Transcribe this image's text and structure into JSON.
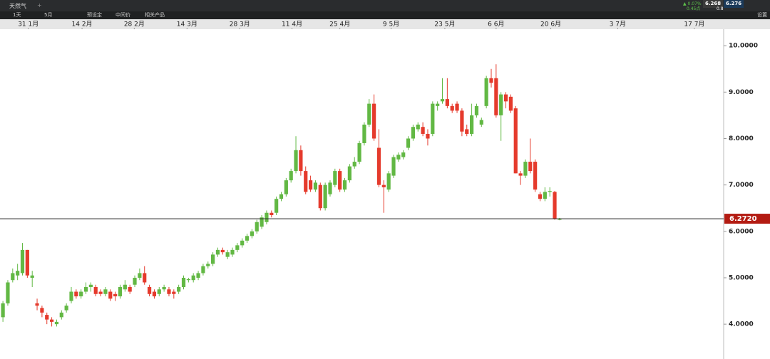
{
  "toolbar": {
    "instrument": "天然气",
    "add": "+",
    "change": "▲ 0.07%",
    "points": "0.45点",
    "sell": "6.268",
    "buy": "6.276",
    "spread": "0.8",
    "period": "1天",
    "range": "5月",
    "preset": "预设定",
    "mid": "中间价",
    "related": "相关产品",
    "settings": "设置"
  },
  "chart_data": {
    "type": "candlestick",
    "up_color": "#62b844",
    "down_color": "#e53a2c",
    "open": [
      4.15,
      4.45,
      4.95,
      5.05,
      5.1,
      5.6,
      5.0,
      4.45,
      4.35,
      4.2,
      4.1,
      4.0,
      4.15,
      4.3,
      4.5,
      4.7,
      4.6,
      4.7,
      4.8,
      4.8,
      4.7,
      4.65,
      4.7,
      4.65,
      4.6,
      4.75,
      4.8,
      4.85,
      5.0,
      5.1,
      4.8,
      4.7,
      4.65,
      4.75,
      4.75,
      4.7,
      4.7,
      4.8,
      4.95,
      4.95,
      5.0,
      5.1,
      5.25,
      5.3,
      5.5,
      5.6,
      5.45,
      5.5,
      5.6,
      5.7,
      5.8,
      5.9,
      6.0,
      6.1,
      6.2,
      6.4,
      6.4,
      6.7,
      6.8,
      7.1,
      7.3,
      7.75,
      7.3,
      7.1,
      6.9,
      7.0,
      6.5,
      6.8,
      7.0,
      7.3,
      6.9,
      7.1,
      7.4,
      7.5,
      7.9,
      8.3,
      8.75,
      7.8,
      7.0,
      6.9,
      7.2,
      7.55,
      7.6,
      7.8,
      8.0,
      8.2,
      8.25,
      8.1,
      8.1,
      8.7,
      8.8,
      8.85,
      8.7,
      8.75,
      8.6,
      8.2,
      8.1,
      8.5,
      8.3,
      8.7,
      9.3,
      9.3,
      8.5,
      8.95,
      8.9,
      8.65,
      7.25,
      7.2,
      7.5,
      7.5,
      6.8,
      6.7,
      6.85,
      6.85,
      6.25
    ],
    "high": [
      4.5,
      4.95,
      5.2,
      5.3,
      5.75,
      5.6,
      5.15,
      4.55,
      4.4,
      4.25,
      4.15,
      4.1,
      4.3,
      4.45,
      4.8,
      4.75,
      4.75,
      4.9,
      4.9,
      4.85,
      4.75,
      4.8,
      4.75,
      4.7,
      4.85,
      4.95,
      4.85,
      5.05,
      5.2,
      5.25,
      4.85,
      4.75,
      4.8,
      4.85,
      4.8,
      4.75,
      4.85,
      5.05,
      5.0,
      5.1,
      5.15,
      5.3,
      5.35,
      5.55,
      5.65,
      5.65,
      5.6,
      5.65,
      5.75,
      5.85,
      5.95,
      6.05,
      6.25,
      6.35,
      6.45,
      6.45,
      6.75,
      6.85,
      7.15,
      7.35,
      8.05,
      7.85,
      7.4,
      7.2,
      7.1,
      7.05,
      7.05,
      7.1,
      7.35,
      7.35,
      7.15,
      7.45,
      7.6,
      7.95,
      8.35,
      8.85,
      8.95,
      8.2,
      7.1,
      7.3,
      7.65,
      7.7,
      7.75,
      8.05,
      8.3,
      8.35,
      8.35,
      8.2,
      8.8,
      8.8,
      9.3,
      9.3,
      8.75,
      8.8,
      8.65,
      8.3,
      8.75,
      8.75,
      8.45,
      9.35,
      9.5,
      9.6,
      9.0,
      9.0,
      8.95,
      8.7,
      7.3,
      7.55,
      8.0,
      7.55,
      6.85,
      6.95,
      6.95,
      6.87,
      6.29
    ],
    "low": [
      4.05,
      4.4,
      4.9,
      4.95,
      5.05,
      5.0,
      4.8,
      4.3,
      4.15,
      4.0,
      3.95,
      3.95,
      4.1,
      4.25,
      4.45,
      4.55,
      4.55,
      4.65,
      4.7,
      4.6,
      4.6,
      4.6,
      4.5,
      4.5,
      4.55,
      4.7,
      4.65,
      4.8,
      4.95,
      4.85,
      4.6,
      4.55,
      4.6,
      4.7,
      4.6,
      4.55,
      4.65,
      4.75,
      4.9,
      4.9,
      4.95,
      5.05,
      5.2,
      5.25,
      5.45,
      5.5,
      5.4,
      5.45,
      5.55,
      5.65,
      5.75,
      5.85,
      5.95,
      6.05,
      6.15,
      6.3,
      6.35,
      6.65,
      6.75,
      7.05,
      7.25,
      7.2,
      6.8,
      6.85,
      6.85,
      6.45,
      6.45,
      6.75,
      6.95,
      6.85,
      6.85,
      7.05,
      7.35,
      7.45,
      7.85,
      8.25,
      7.95,
      6.95,
      6.4,
      6.85,
      7.15,
      7.5,
      7.55,
      7.75,
      7.95,
      8.15,
      8.05,
      7.85,
      8.05,
      8.6,
      8.75,
      8.65,
      8.55,
      8.55,
      8.05,
      8.05,
      8.05,
      8.45,
      8.25,
      8.65,
      9.1,
      8.45,
      7.95,
      8.65,
      8.55,
      7.25,
      7.0,
      7.15,
      7.25,
      6.85,
      6.65,
      6.65,
      6.75,
      6.25,
      6.24
    ],
    "close": [
      4.45,
      4.9,
      5.1,
      5.15,
      5.6,
      5.05,
      5.05,
      4.4,
      4.25,
      4.1,
      4.05,
      4.05,
      4.25,
      4.4,
      4.7,
      4.6,
      4.7,
      4.8,
      4.85,
      4.65,
      4.65,
      4.75,
      4.55,
      4.6,
      4.8,
      4.85,
      4.7,
      5.0,
      5.1,
      4.9,
      4.65,
      4.6,
      4.75,
      4.8,
      4.65,
      4.65,
      4.8,
      5.0,
      4.97,
      5.05,
      5.1,
      5.25,
      5.3,
      5.5,
      5.6,
      5.55,
      5.55,
      5.6,
      5.7,
      5.8,
      5.9,
      6.0,
      6.2,
      6.3,
      6.4,
      6.35,
      6.7,
      6.8,
      7.1,
      7.3,
      7.75,
      7.3,
      6.85,
      6.9,
      7.05,
      6.5,
      7.0,
      7.05,
      7.3,
      6.9,
      7.1,
      7.4,
      7.5,
      7.9,
      8.3,
      8.75,
      8.0,
      7.0,
      6.95,
      7.25,
      7.6,
      7.65,
      7.7,
      8.0,
      8.25,
      8.3,
      8.1,
      8.0,
      8.75,
      8.75,
      8.85,
      8.7,
      8.6,
      8.6,
      8.15,
      8.1,
      8.5,
      8.7,
      8.4,
      9.3,
      9.2,
      8.5,
      8.95,
      8.8,
      8.6,
      7.25,
      7.2,
      7.5,
      7.3,
      6.9,
      6.7,
      6.85,
      6.87,
      6.27,
      6.272
    ],
    "xlim": [
      -0.6,
      147.6
    ],
    "xticks": [
      {
        "value": 5.2,
        "label": "31 1月"
      },
      {
        "value": 16.2,
        "label": "14 2月"
      },
      {
        "value": 26.9,
        "label": "28 2月"
      },
      {
        "value": 37.7,
        "label": "14 3月"
      },
      {
        "value": 48.5,
        "label": "28 3月"
      },
      {
        "value": 59.2,
        "label": "11 4月"
      },
      {
        "value": 69,
        "label": "25 4月"
      },
      {
        "value": 79.5,
        "label": "9 5月"
      },
      {
        "value": 90.5,
        "label": "23 5月"
      },
      {
        "value": 101,
        "label": "6 6月"
      },
      {
        "value": 112.2,
        "label": "20 6月"
      },
      {
        "value": 125.9,
        "label": "3 7月"
      },
      {
        "value": 141.6,
        "label": "17 7月"
      }
    ],
    "ylim": [
      3.25,
      10.34
    ],
    "yticks": [
      {
        "value": 4,
        "label": "4.0000"
      },
      {
        "value": 5,
        "label": "5.0000"
      },
      {
        "value": 6,
        "label": "6.0000"
      },
      {
        "value": 7,
        "label": "7.0000"
      },
      {
        "value": 8,
        "label": "8.0000"
      },
      {
        "value": 9,
        "label": "9.0000"
      },
      {
        "value": 10,
        "label": "10.0000"
      }
    ],
    "current_price": {
      "value": 6.272,
      "label": "6.2720"
    },
    "current_color": "#b31b12"
  }
}
